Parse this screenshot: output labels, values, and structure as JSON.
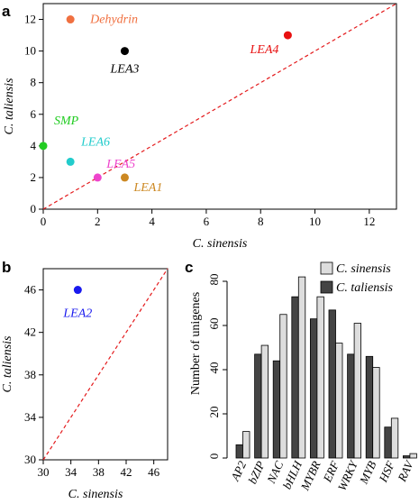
{
  "chart_data": [
    {
      "panel_label": "a",
      "type": "scatter",
      "xlabel": "C. sinensis",
      "ylabel": "C. taliensis",
      "xlim": [
        0,
        13
      ],
      "ylim": [
        0,
        13
      ],
      "xticks": [
        "0",
        "2",
        "4",
        "6",
        "8",
        "10",
        "12"
      ],
      "yticks": [
        "0",
        "2",
        "4",
        "6",
        "8",
        "10",
        "12"
      ],
      "diagonal": "y = x, dashed red",
      "points": [
        {
          "label": "Dehydrin",
          "x": 1,
          "y": 12,
          "color": "#f07040"
        },
        {
          "label": "LEA3",
          "x": 3,
          "y": 10,
          "color": "#000000"
        },
        {
          "label": "LEA4",
          "x": 9,
          "y": 11,
          "color": "#e81010"
        },
        {
          "label": "SMP",
          "x": 0,
          "y": 4,
          "color": "#22cc22"
        },
        {
          "label": "LEA6",
          "x": 1,
          "y": 3,
          "color": "#22cccc"
        },
        {
          "label": "LEA5",
          "x": 2,
          "y": 2,
          "color": "#ee44cc"
        },
        {
          "label": "LEA1",
          "x": 3,
          "y": 2,
          "color": "#cc8822"
        }
      ]
    },
    {
      "panel_label": "b",
      "type": "scatter",
      "xlabel": "C. sinensis",
      "ylabel": "C. taliensis",
      "xlim": [
        30,
        48
      ],
      "ylim": [
        30,
        48
      ],
      "xticks": [
        "30",
        "34",
        "38",
        "42",
        "46"
      ],
      "yticks": [
        "30",
        "34",
        "38",
        "42",
        "46"
      ],
      "diagonal": "y = x, dashed red",
      "points": [
        {
          "label": "LEA2",
          "x": 35,
          "y": 46,
          "color": "#1a1aee"
        }
      ]
    },
    {
      "panel_label": "c",
      "type": "bar",
      "ylabel": "Number of unigenes",
      "ylim": [
        0,
        80
      ],
      "yticks": [
        "0",
        "20",
        "40",
        "60",
        "80"
      ],
      "categories": [
        "AP2",
        "bZIP",
        "NAC",
        "bHLH",
        "MYBR",
        "ERF",
        "WRKY",
        "MYB",
        "HSF",
        "RAV"
      ],
      "series": [
        {
          "name": "C. taliensis",
          "color": "#444444",
          "values": [
            6,
            47,
            44,
            73,
            63,
            67,
            47,
            46,
            14,
            1
          ]
        },
        {
          "name": "C. sinensis",
          "color": "#dddddd",
          "values": [
            12,
            51,
            65,
            82,
            73,
            52,
            61,
            41,
            18,
            2
          ]
        }
      ],
      "legend": "top-right"
    }
  ]
}
